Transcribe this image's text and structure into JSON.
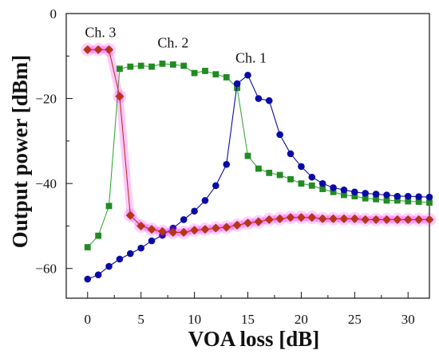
{
  "chart_data": {
    "type": "line",
    "xlabel": "VOA loss [dB]",
    "ylabel": "Output power [dBm]",
    "xlim": [
      -2,
      32
    ],
    "ylim": [
      -67,
      0
    ],
    "x_ticks": [
      0,
      5,
      10,
      15,
      20,
      25,
      30
    ],
    "y_ticks": [
      0,
      -20,
      -40,
      -60
    ],
    "grid": false,
    "legend": "none",
    "annotations": [
      {
        "text": "Ch. 3",
        "x": 1.2,
        "y": -5.5
      },
      {
        "text": "Ch. 2",
        "x": 8.0,
        "y": -8.0
      },
      {
        "text": "Ch. 1",
        "x": 15.3,
        "y": -11.5
      }
    ],
    "series": [
      {
        "label": "Ch. 1",
        "color": "#0a0aa5",
        "marker": "circle",
        "x": [
          0,
          1,
          2,
          3,
          4,
          5,
          6,
          7,
          8,
          9,
          10,
          11,
          12,
          13,
          14,
          15,
          16,
          17,
          18,
          19,
          20,
          21,
          22,
          23,
          24,
          25,
          26,
          27,
          28,
          29,
          30,
          31,
          32
        ],
        "y": [
          -62.5,
          -61.5,
          -59.5,
          -57.8,
          -56.5,
          -55.2,
          -53.5,
          -52.2,
          -50.5,
          -48.5,
          -46.5,
          -44,
          -40.5,
          -35.5,
          -16.5,
          -14.5,
          -20,
          -20.5,
          -28.5,
          -33,
          -36,
          -38.5,
          -40,
          -41,
          -41.5,
          -42,
          -42.3,
          -42.5,
          -42.7,
          -43,
          -43,
          -43.1,
          -43.2
        ]
      },
      {
        "label": "Ch. 2",
        "color": "#228b22",
        "line_color": "#3aa83a",
        "marker": "square",
        "x": [
          0,
          1,
          2,
          3,
          4,
          5,
          6,
          7,
          8,
          9,
          10,
          11,
          12,
          13,
          14,
          15,
          16,
          17,
          18,
          19,
          20,
          21,
          22,
          23,
          24,
          25,
          26,
          27,
          28,
          29,
          30,
          31,
          32
        ],
        "y": [
          -55,
          -52.3,
          -45.3,
          -13,
          -12.5,
          -12.3,
          -12.5,
          -11.8,
          -12,
          -12.3,
          -14,
          -13.5,
          -14.3,
          -15,
          -17.5,
          -33.5,
          -36.5,
          -37.5,
          -38,
          -39,
          -40,
          -40.5,
          -41.3,
          -42,
          -42.7,
          -43,
          -43.5,
          -43.7,
          -44,
          -44,
          -44.2,
          -44.3,
          -44.5
        ]
      },
      {
        "label": "Ch. 3",
        "color": "#b5361a",
        "glow_color": "#ff00ff",
        "marker": "diamond",
        "x": [
          0,
          1,
          2,
          3,
          4,
          5,
          6,
          7,
          8,
          9,
          10,
          11,
          12,
          13,
          14,
          15,
          16,
          17,
          18,
          19,
          20,
          21,
          22,
          23,
          24,
          25,
          26,
          27,
          28,
          29,
          30,
          31,
          32
        ],
        "y": [
          -8.5,
          -8.5,
          -8.5,
          -19.5,
          -47.5,
          -50,
          -50.8,
          -51.3,
          -51.5,
          -51.5,
          -51,
          -50.8,
          -50.5,
          -50.3,
          -49.8,
          -49.3,
          -49,
          -48.5,
          -48.3,
          -48,
          -48,
          -48,
          -48.3,
          -48.3,
          -48.3,
          -48.3,
          -48.5,
          -48.5,
          -48.5,
          -48.5,
          -48.5,
          -48.5,
          -48.5
        ]
      }
    ]
  }
}
